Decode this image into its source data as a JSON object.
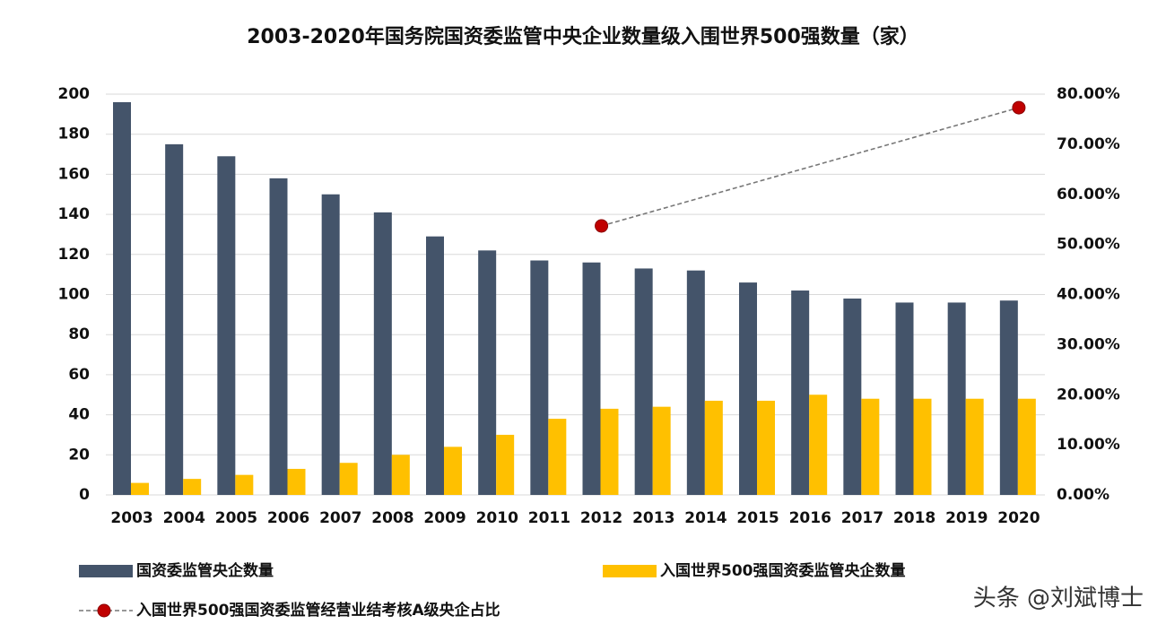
{
  "chart_data": {
    "type": "bar",
    "title": "2003-2020年国务院国资委监管中央企业数量级入围世界500强数量（家）",
    "categories": [
      "2003",
      "2004",
      "2005",
      "2006",
      "2007",
      "2008",
      "2009",
      "2010",
      "2011",
      "2012",
      "2013",
      "2014",
      "2015",
      "2016",
      "2017",
      "2018",
      "2019",
      "2020"
    ],
    "series": [
      {
        "name": "国资委监管央企数量",
        "color": "#44546a",
        "type": "bar",
        "values": [
          196,
          175,
          169,
          158,
          150,
          141,
          129,
          122,
          117,
          116,
          113,
          112,
          106,
          102,
          98,
          96,
          96,
          97
        ]
      },
      {
        "name": "入国世界500强国资委监管央企数量",
        "color": "#ffc000",
        "type": "bar",
        "values": [
          6,
          8,
          10,
          13,
          16,
          20,
          24,
          30,
          38,
          43,
          44,
          47,
          47,
          50,
          48,
          48,
          48,
          48
        ]
      },
      {
        "name": "入国世界500强国资委监管经营业结考核A级央企占比",
        "color": "#c00000",
        "type": "line",
        "axis": "y2",
        "x": [
          "2012",
          "2020"
        ],
        "values": [
          53.7,
          77.3
        ]
      }
    ],
    "ylim": [
      0,
      200
    ],
    "yticks": [
      0,
      20,
      40,
      60,
      80,
      100,
      120,
      140,
      160,
      180,
      200
    ],
    "y2lim": [
      0,
      80
    ],
    "y2ticks": [
      {
        "value": 0,
        "label": "0.00%"
      },
      {
        "value": 10,
        "label": "10.00%"
      },
      {
        "value": 20,
        "label": "20.00%"
      },
      {
        "value": 30,
        "label": "30.00%"
      },
      {
        "value": 40,
        "label": "40.00%"
      },
      {
        "value": 50,
        "label": "50.00%"
      },
      {
        "value": 60,
        "label": "60.00%"
      },
      {
        "value": 70,
        "label": "70.00%"
      },
      {
        "value": 80,
        "label": "80.00%"
      }
    ],
    "grid": true,
    "watermark": "头条 @刘斌博士"
  }
}
